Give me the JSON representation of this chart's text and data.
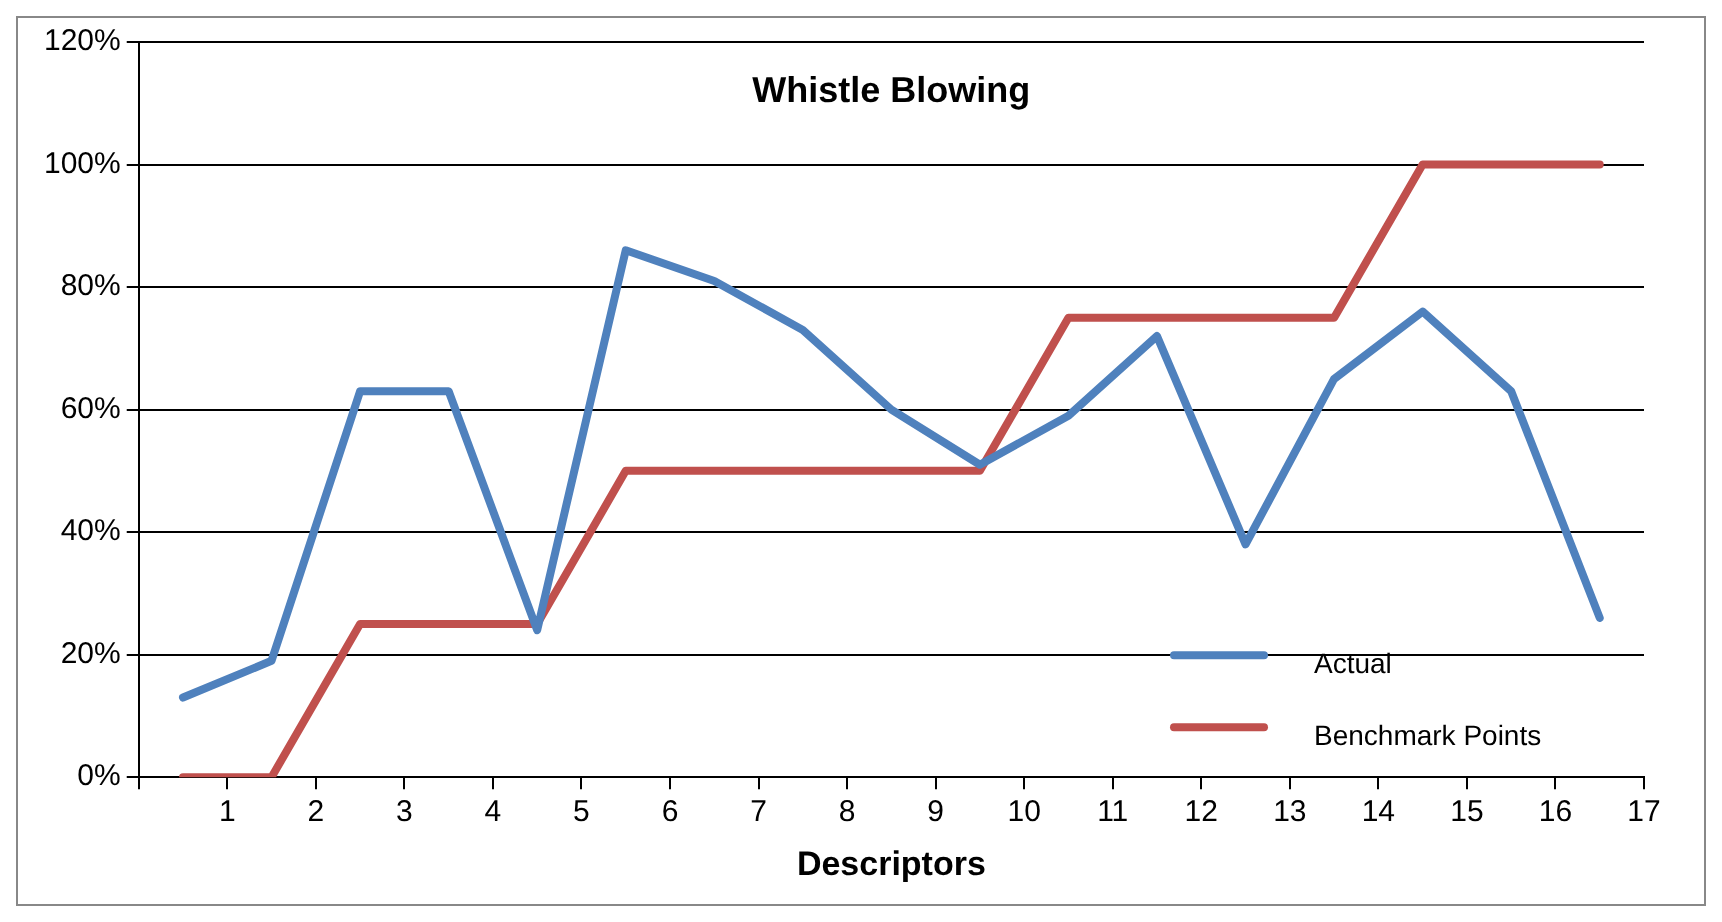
{
  "chart_data": {
    "type": "line",
    "title": "Whistle Blowing",
    "xlabel": "Descriptors",
    "x": [
      0.5,
      1.5,
      2.5,
      3.5,
      4.5,
      5.5,
      6.5,
      7.5,
      8.5,
      9.5,
      10.5,
      11.5,
      12.5,
      13.5,
      14.5,
      15.5,
      16.5
    ],
    "series": [
      {
        "name": "Actual",
        "color": "#4f81bd",
        "values": [
          13,
          19,
          63,
          63,
          24,
          86,
          81,
          73,
          60,
          51,
          59,
          72,
          38,
          65,
          76,
          63,
          26
        ]
      },
      {
        "name": "Benchmark Points",
        "color": "#c0504d",
        "values": [
          0,
          0,
          25,
          25,
          25,
          50,
          50,
          50,
          50,
          50,
          75,
          75,
          75,
          75,
          100,
          100,
          100
        ]
      }
    ],
    "xlim": [
      0,
      17
    ],
    "xticks": [
      {
        "value": 0,
        "label": null
      },
      1,
      2,
      3,
      4,
      5,
      6,
      7,
      8,
      9,
      10,
      11,
      12,
      13,
      14,
      15,
      16,
      17
    ],
    "ylim": [
      0,
      120
    ],
    "yticks": [
      {
        "value": 0,
        "label": "0%"
      },
      {
        "value": 20,
        "label": "20%"
      },
      {
        "value": 40,
        "label": "40%"
      },
      {
        "value": 60,
        "label": "60%"
      },
      {
        "value": 80,
        "label": "80%"
      },
      {
        "value": 100,
        "label": "100%"
      },
      {
        "value": 120,
        "label": "120%"
      }
    ],
    "grid": "y",
    "legend": "bottom right",
    "marker": "none",
    "line_style": "solid"
  }
}
